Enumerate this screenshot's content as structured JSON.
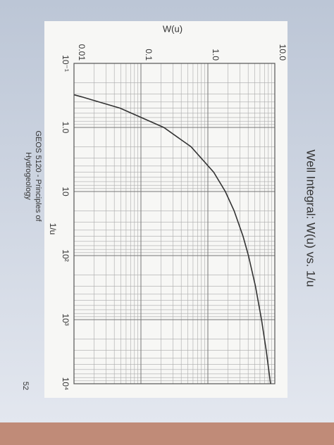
{
  "chart_data": {
    "type": "line",
    "title": "Well Integral: W(u) vs. 1/u",
    "x_label": "1/u",
    "y_label": "W(u)",
    "footer": [
      "GEOS 5120 - Principles of",
      "Hydrogeology"
    ],
    "page_number": "52",
    "x_log": true,
    "y_log": true,
    "grid": true,
    "minor_grid": true,
    "xlim": [
      0.1,
      10000
    ],
    "ylim": [
      0.01,
      10
    ],
    "xticks": [
      {
        "value": 0.1,
        "label": "10⁻¹"
      },
      {
        "value": 1,
        "label": "1.0"
      },
      10,
      {
        "value": 100,
        "label": "10²"
      },
      {
        "value": 1000,
        "label": "10³"
      },
      {
        "value": 10000,
        "label": "10⁴"
      }
    ],
    "yticks": [
      0.01,
      0.1,
      {
        "value": 1,
        "label": "1.0"
      },
      {
        "value": 10,
        "label": "10.0"
      }
    ],
    "x": [
      0.31,
      0.333,
      0.5,
      1,
      2,
      5,
      10,
      20,
      50,
      100,
      300,
      1000,
      3000,
      10000
    ],
    "series": [
      {
        "name": "W(u)",
        "color": "#333333",
        "values": [
          0.0101,
          0.01305,
          0.0489,
          0.2194,
          0.5598,
          1.2227,
          1.8229,
          2.4679,
          3.3547,
          4.0379,
          5.1365,
          6.3315,
          7.4302,
          8.6332
        ]
      }
    ]
  }
}
